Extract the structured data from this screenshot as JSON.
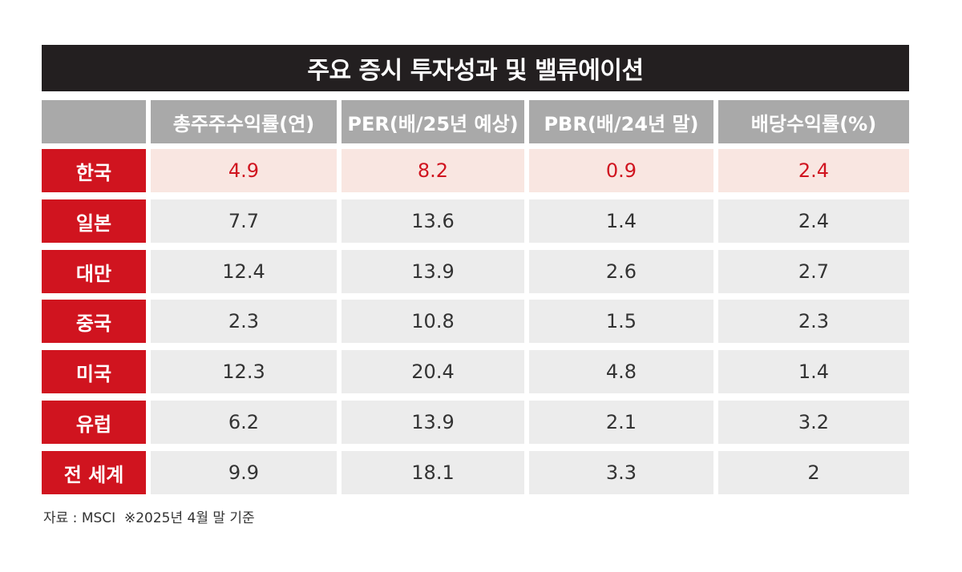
{
  "title": "주요 증시 투자성과 및 밸류에이션",
  "header": {
    "columns": [
      "총주주수익률(연)",
      "PER(배/25년 예상)",
      "PBR(배/24년 말)",
      "배당수익률(%)"
    ]
  },
  "rows": [
    {
      "label": "한국",
      "values": [
        "4.9",
        "8.2",
        "0.9",
        "2.4"
      ]
    },
    {
      "label": "일본",
      "values": [
        "7.7",
        "13.6",
        "1.4",
        "2.4"
      ]
    },
    {
      "label": "대만",
      "values": [
        "12.4",
        "13.9",
        "2.6",
        "2.7"
      ]
    },
    {
      "label": "중국",
      "values": [
        "2.3",
        "10.8",
        "1.5",
        "2.3"
      ]
    },
    {
      "label": "미국",
      "values": [
        "12.3",
        "20.4",
        "4.8",
        "1.4"
      ]
    },
    {
      "label": "유럽",
      "values": [
        "6.2",
        "13.9",
        "2.1",
        "3.2"
      ]
    },
    {
      "label": "전 세계",
      "values": [
        "9.9",
        "18.1",
        "3.3",
        "2"
      ]
    }
  ],
  "highlight_row": "한국",
  "source": "자료 : MSCI  ※2025년 4월 말 기준",
  "colors": {
    "title_bg": "#231f20",
    "header_bg": "#a9a9a9",
    "row_label_bg": "#d0141f",
    "cell_bg": "#ececec",
    "highlight_bg": "#f9e6e1",
    "highlight_text": "#d0141f"
  }
}
